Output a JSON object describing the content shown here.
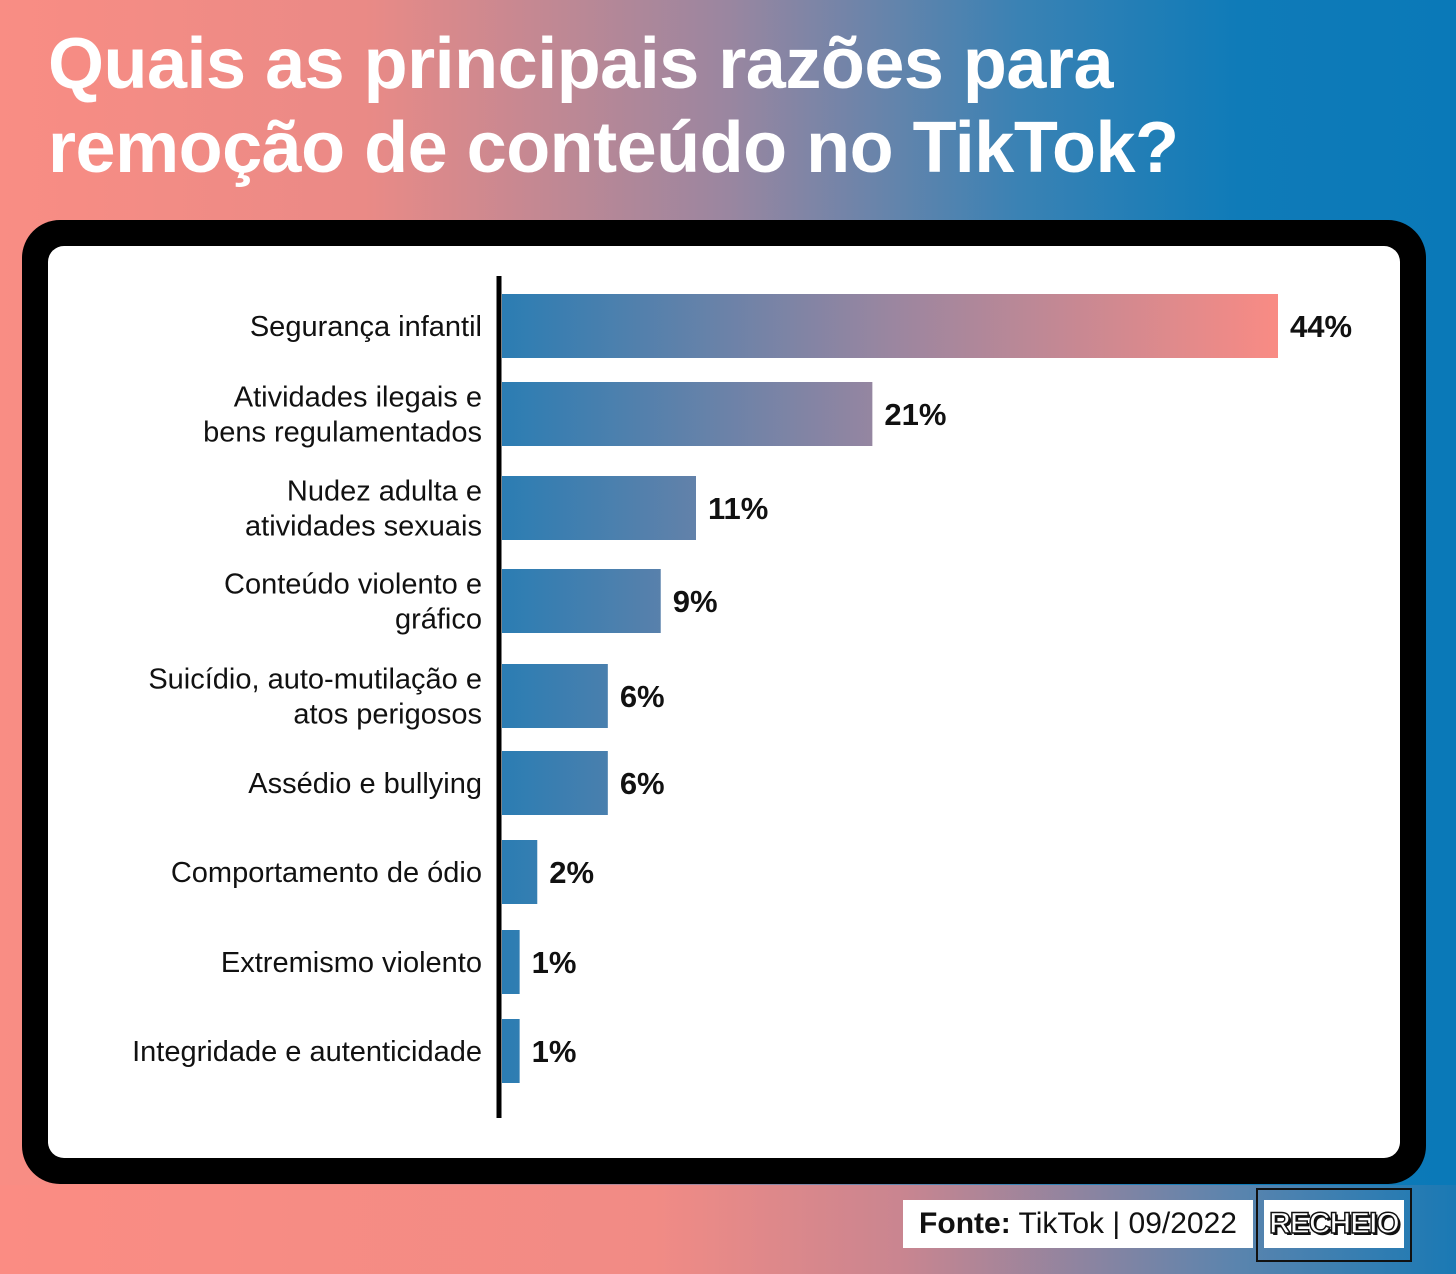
{
  "header": {
    "title_line1": "Quais as principais razões para",
    "title_line2": "remoção de conteúdo no TikTok?"
  },
  "footer": {
    "source_label": "Fonte:",
    "source_value": "TikTok | 09/2022",
    "brand": "RECHEIO"
  },
  "colors": {
    "bar_start": "#2b7db3",
    "bar_end": "#f98b84",
    "text": "#111111",
    "axis": "#000000"
  },
  "chart_data": {
    "type": "bar",
    "orientation": "horizontal",
    "title": "Quais as principais razões para remoção de conteúdo no TikTok?",
    "categories": [
      [
        "Segurança infantil"
      ],
      [
        "Atividades ilegais e",
        "bens regulamentados"
      ],
      [
        "Nudez adulta e",
        "atividades sexuais"
      ],
      [
        "Conteúdo violento e",
        "gráfico"
      ],
      [
        "Suicídio, auto-mutilação e",
        "atos perigosos"
      ],
      [
        "Assédio e bullying"
      ],
      [
        "Comportamento de ódio"
      ],
      [
        "Extremismo violento"
      ],
      [
        "Integridade e autenticidade"
      ]
    ],
    "values": [
      44,
      21,
      11,
      9,
      6,
      6,
      2,
      1,
      1
    ],
    "value_labels": [
      "44%",
      "21%",
      "11%",
      "9%",
      "6%",
      "6%",
      "2%",
      "1%",
      "1%"
    ],
    "unit": "%",
    "xlim": [
      0,
      44
    ],
    "grid": false,
    "legend": "none"
  }
}
